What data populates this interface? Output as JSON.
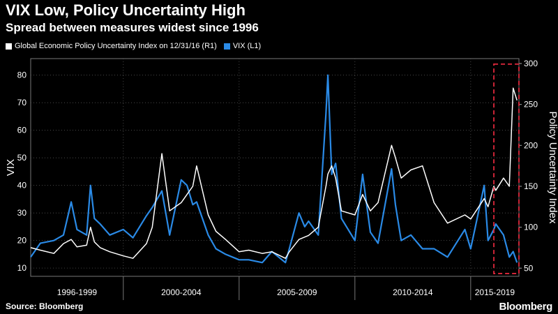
{
  "header": {
    "title": "VIX Low, Policy Uncertainty High",
    "subtitle": "Spread between measures widest since 1996"
  },
  "footer": {
    "source": "Source: Bloomberg",
    "logo": "Bloomberg"
  },
  "colors": {
    "background": "#000000",
    "vix": "#2a8ae6",
    "epu": "#ffffff",
    "highlight": "#e0283c",
    "grid": "#555555"
  },
  "chart_data": {
    "type": "line",
    "title": "VIX Low, Policy Uncertainty High",
    "subtitle": "Spread between measures widest since 1996",
    "x_range": [
      "1996-01",
      "2017-02"
    ],
    "x_tick_labels": [
      "1996-1999",
      "2000-2004",
      "2005-2009",
      "2010-2014",
      "2015-2019"
    ],
    "grid": true,
    "legend_position": "top-left",
    "y_left": {
      "label": "VIX",
      "range": [
        7,
        86
      ],
      "ticks": [
        10,
        20,
        30,
        40,
        50,
        60,
        70,
        80
      ]
    },
    "y_right": {
      "label": "Policy Uncertainty Index",
      "range": [
        40,
        306
      ],
      "ticks": [
        50,
        100,
        150,
        200,
        250,
        300
      ]
    },
    "highlight_box": {
      "x_range": [
        "2016-01",
        "2017-02"
      ],
      "y_left_range": [
        8,
        84
      ]
    },
    "series": [
      {
        "name": "VIX (L1)",
        "axis": "left",
        "x": [
          "1996-01",
          "1996-06",
          "1997-01",
          "1997-06",
          "1997-10",
          "1998-01",
          "1998-06",
          "1998-08",
          "1998-10",
          "1999-01",
          "1999-06",
          "2000-01",
          "2000-06",
          "2001-01",
          "2001-04",
          "2001-09",
          "2002-01",
          "2002-07",
          "2002-10",
          "2003-01",
          "2003-03",
          "2003-09",
          "2004-01",
          "2004-06",
          "2005-01",
          "2005-06",
          "2006-01",
          "2006-06",
          "2007-01",
          "2007-03",
          "2007-08",
          "2007-11",
          "2008-01",
          "2008-06",
          "2008-10",
          "2008-11",
          "2009-01",
          "2009-03",
          "2009-06",
          "2010-01",
          "2010-05",
          "2010-09",
          "2011-01",
          "2011-08",
          "2011-10",
          "2012-01",
          "2012-06",
          "2012-12",
          "2013-06",
          "2014-01",
          "2014-10",
          "2015-01",
          "2015-08",
          "2015-10",
          "2016-01",
          "2016-02",
          "2016-06",
          "2016-09",
          "2016-11",
          "2017-01"
        ],
        "y": [
          14,
          19,
          20,
          22,
          34,
          24,
          22,
          40,
          28,
          26,
          22,
          24,
          21,
          29,
          32,
          38,
          22,
          42,
          40,
          33,
          34,
          22,
          17,
          15,
          13,
          13,
          12,
          16,
          12,
          17,
          30,
          25,
          27,
          22,
          66,
          80,
          44,
          48,
          28,
          20,
          44,
          23,
          19,
          46,
          33,
          20,
          22,
          17,
          17,
          14,
          24,
          17,
          40,
          20,
          24,
          26,
          22,
          14,
          16,
          12
        ]
      },
      {
        "name": "Global Economic Policy Uncertainty Index on 12/31/16 (R1)",
        "axis": "right",
        "x": [
          "1996-01",
          "1996-06",
          "1997-01",
          "1997-06",
          "1997-10",
          "1998-01",
          "1998-06",
          "1998-08",
          "1998-10",
          "1999-01",
          "1999-06",
          "2000-01",
          "2000-06",
          "2001-01",
          "2001-04",
          "2001-09",
          "2002-01",
          "2002-07",
          "2002-10",
          "2003-01",
          "2003-03",
          "2003-09",
          "2004-01",
          "2004-06",
          "2005-01",
          "2005-06",
          "2006-01",
          "2006-06",
          "2007-01",
          "2007-03",
          "2007-08",
          "2007-11",
          "2008-01",
          "2008-06",
          "2008-10",
          "2008-11",
          "2009-01",
          "2009-03",
          "2009-06",
          "2010-01",
          "2010-05",
          "2010-09",
          "2011-01",
          "2011-08",
          "2011-10",
          "2012-01",
          "2012-06",
          "2012-12",
          "2013-06",
          "2014-01",
          "2014-10",
          "2015-01",
          "2015-08",
          "2015-10",
          "2016-01",
          "2016-02",
          "2016-06",
          "2016-09",
          "2016-11",
          "2017-01"
        ],
        "y": [
          75,
          72,
          68,
          80,
          85,
          76,
          78,
          100,
          82,
          75,
          70,
          65,
          62,
          80,
          100,
          190,
          120,
          130,
          140,
          150,
          175,
          115,
          95,
          85,
          70,
          72,
          68,
          70,
          62,
          70,
          85,
          88,
          90,
          100,
          150,
          165,
          175,
          160,
          120,
          115,
          140,
          120,
          130,
          200,
          185,
          160,
          170,
          175,
          130,
          105,
          115,
          110,
          135,
          125,
          150,
          145,
          160,
          150,
          270,
          255
        ]
      }
    ]
  }
}
